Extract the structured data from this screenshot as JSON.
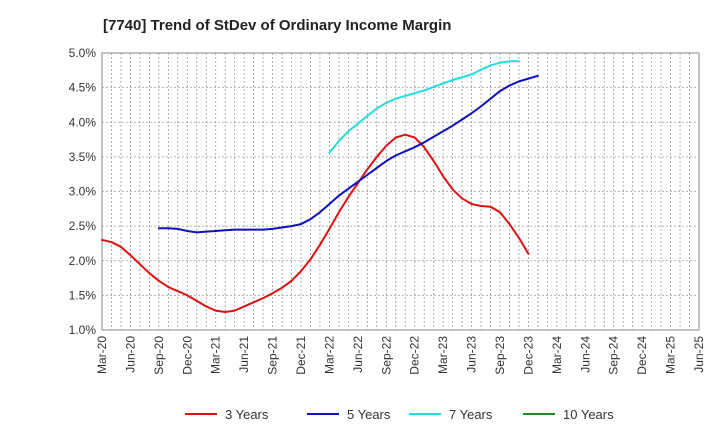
{
  "chart_data": {
    "type": "line",
    "title": "[7740]  Trend of StDev of Ordinary Income Margin",
    "xlabel": "",
    "ylabel": "",
    "x_categories": [
      "Mar-20",
      "Jun-20",
      "Sep-20",
      "Dec-20",
      "Mar-21",
      "Jun-21",
      "Sep-21",
      "Dec-21",
      "Mar-22",
      "Jun-22",
      "Sep-22",
      "Dec-22",
      "Mar-23",
      "Jun-23",
      "Sep-23",
      "Dec-23",
      "Mar-24",
      "Jun-24",
      "Sep-24",
      "Dec-24",
      "Mar-25",
      "Jun-25"
    ],
    "y_ticks": [
      "1.0%",
      "1.5%",
      "2.0%",
      "2.5%",
      "3.0%",
      "3.5%",
      "4.0%",
      "4.5%",
      "5.0%"
    ],
    "ylim": [
      1.0,
      5.0
    ],
    "y_unit": "%",
    "grid": true,
    "legend_position": "bottom",
    "series": [
      {
        "name": "3 Years",
        "color": "#dd1111",
        "start_index": 0,
        "values": [
          2.3,
          2.27,
          2.2,
          2.08,
          1.95,
          1.82,
          1.71,
          1.62,
          1.56,
          1.5,
          1.42,
          1.34,
          1.28,
          1.26,
          1.28,
          1.34,
          1.4,
          1.46,
          1.53,
          1.61,
          1.71,
          1.85,
          2.02,
          2.23,
          2.46,
          2.7,
          2.92,
          3.12,
          3.32,
          3.5,
          3.66,
          3.78,
          3.82,
          3.78,
          3.64,
          3.44,
          3.22,
          3.03,
          2.9,
          2.82,
          2.79,
          2.78,
          2.7,
          2.53,
          2.33,
          2.1
        ]
      },
      {
        "name": "5 Years",
        "color": "#1111bb",
        "start_index": 6,
        "values": [
          2.47,
          2.47,
          2.46,
          2.43,
          2.41,
          2.42,
          2.43,
          2.44,
          2.45,
          2.45,
          2.45,
          2.45,
          2.46,
          2.48,
          2.5,
          2.53,
          2.6,
          2.7,
          2.82,
          2.94,
          3.04,
          3.14,
          3.24,
          3.34,
          3.44,
          3.52,
          3.58,
          3.64,
          3.71,
          3.79,
          3.87,
          3.95,
          4.04,
          4.13,
          4.23,
          4.34,
          4.45,
          4.53,
          4.59,
          4.63,
          4.67
        ]
      },
      {
        "name": "7 Years",
        "color": "#22dddd",
        "start_index": 24,
        "values": [
          3.56,
          3.73,
          3.87,
          3.98,
          4.09,
          4.2,
          4.28,
          4.34,
          4.38,
          4.42,
          4.46,
          4.51,
          4.56,
          4.61,
          4.65,
          4.69,
          4.76,
          4.82,
          4.86,
          4.88,
          4.88
        ]
      },
      {
        "name": "10 Years",
        "color": "#228822",
        "start_index": 0,
        "values": []
      }
    ]
  }
}
